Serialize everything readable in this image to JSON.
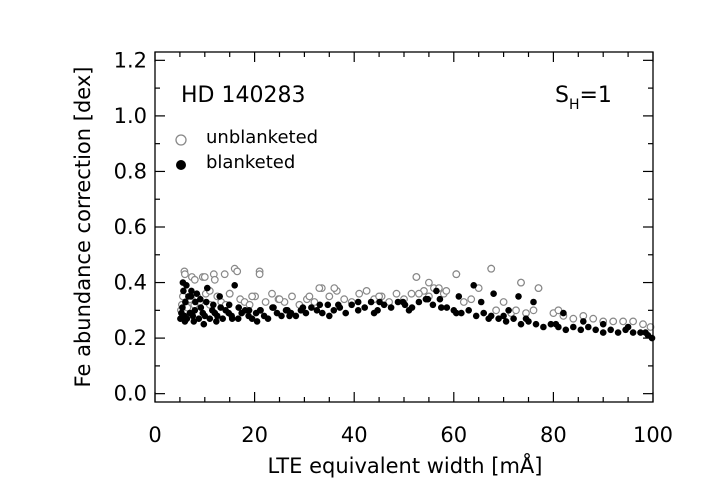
{
  "chart_data": {
    "type": "scatter",
    "object_label": "HD 140283",
    "sh_label": "S",
    "sh_subscript": "H",
    "sh_value": "=1",
    "xlabel": "LTE equivalent width [mÅ]",
    "ylabel": "Fe abundance correction [dex]",
    "xlim": [
      0,
      100
    ],
    "ylim": [
      -0.03,
      1.23
    ],
    "xticks": [
      0,
      20,
      40,
      60,
      80,
      100
    ],
    "xtick_labels": [
      "0",
      "20",
      "40",
      "60",
      "80",
      "100"
    ],
    "yticks": [
      0.0,
      0.2,
      0.4,
      0.6,
      0.8,
      1.0,
      1.2
    ],
    "ytick_labels": [
      "0.0",
      "0.2",
      "0.4",
      "0.6",
      "0.8",
      "1.0",
      "1.2"
    ],
    "legend": [
      {
        "name": "unblanketed",
        "marker": "open-circle"
      },
      {
        "name": "blanketed",
        "marker": "filled-circle"
      }
    ],
    "legend_position": "top-left",
    "grid": false,
    "series": [
      {
        "name": "unblanketed",
        "marker": "open-circle",
        "color": "#888888",
        "x": [
          5.2,
          5.4,
          5.6,
          5.9,
          6.2,
          6.5,
          7.0,
          7.4,
          7.9,
          8.5,
          9.0,
          9.6,
          10.2,
          11.0,
          11.8,
          12.5,
          13.3,
          14.2,
          15.0,
          16.0,
          17.1,
          18.0,
          19.0,
          20.1,
          21.0,
          22.2,
          23.5,
          24.8,
          26.0,
          27.5,
          29.0,
          30.5,
          32.0,
          33.5,
          35.0,
          36.5,
          38.0,
          39.5,
          41.0,
          42.5,
          44.0,
          45.5,
          47.0,
          48.5,
          50.0,
          51.5,
          52.5,
          54.0,
          55.0,
          56.0,
          57.0,
          58.0,
          60.5,
          62.0,
          63.5,
          65.0,
          67.5,
          68.5,
          70.0,
          71.5,
          72.5,
          73.5,
          74.5,
          76.0,
          77.0,
          80.0,
          81.0,
          82.0,
          84.0,
          86.0,
          88.0,
          90.0,
          92.0,
          94.0,
          96.0,
          98.0,
          99.5,
          6.0,
          8.0,
          10.0,
          12.0,
          14.0,
          16.5,
          21.0,
          33.0,
          36.0,
          52.5,
          55.0,
          60.5,
          67.5,
          73.5,
          77.0,
          11.0,
          15.0,
          19.5,
          25.0,
          31.0,
          45.0,
          53.0,
          58.5
        ],
        "y": [
          0.3,
          0.32,
          0.35,
          0.44,
          0.33,
          0.31,
          0.34,
          0.42,
          0.32,
          0.35,
          0.33,
          0.42,
          0.36,
          0.32,
          0.43,
          0.35,
          0.33,
          0.32,
          0.36,
          0.45,
          0.34,
          0.33,
          0.32,
          0.35,
          0.44,
          0.33,
          0.36,
          0.34,
          0.33,
          0.35,
          0.32,
          0.34,
          0.33,
          0.38,
          0.35,
          0.37,
          0.34,
          0.33,
          0.36,
          0.37,
          0.34,
          0.35,
          0.33,
          0.36,
          0.34,
          0.36,
          0.42,
          0.37,
          0.35,
          0.38,
          0.38,
          0.36,
          0.43,
          0.33,
          0.34,
          0.38,
          0.45,
          0.3,
          0.33,
          0.29,
          0.3,
          0.4,
          0.29,
          0.3,
          0.38,
          0.29,
          0.3,
          0.28,
          0.27,
          0.28,
          0.27,
          0.26,
          0.26,
          0.26,
          0.26,
          0.25,
          0.24,
          0.43,
          0.41,
          0.42,
          0.41,
          0.43,
          0.44,
          0.43,
          0.38,
          0.38,
          0.42,
          0.4,
          0.43,
          0.45,
          0.4,
          0.38,
          0.37,
          0.36,
          0.35,
          0.34,
          0.35,
          0.35,
          0.36,
          0.37
        ]
      },
      {
        "name": "blanketed",
        "marker": "filled-circle",
        "color": "#000000",
        "x": [
          5.1,
          5.3,
          5.5,
          5.7,
          5.9,
          6.1,
          6.4,
          6.7,
          7.0,
          7.3,
          7.6,
          8.0,
          8.4,
          8.8,
          9.2,
          9.6,
          10.0,
          10.5,
          11.0,
          11.5,
          12.0,
          12.5,
          13.0,
          13.6,
          14.2,
          14.8,
          15.4,
          16.0,
          16.7,
          17.4,
          18.1,
          18.8,
          19.5,
          20.3,
          21.1,
          21.9,
          22.7,
          23.6,
          24.5,
          25.4,
          26.3,
          27.3,
          28.3,
          29.3,
          30.3,
          31.4,
          32.5,
          33.6,
          34.7,
          35.9,
          37.1,
          38.3,
          39.5,
          40.8,
          42.1,
          43.4,
          44.7,
          46.0,
          47.4,
          48.8,
          50.2,
          51.6,
          53.0,
          54.4,
          55.8,
          57.2,
          58.6,
          60.0,
          61.5,
          63.0,
          64.5,
          66.0,
          67.5,
          69.0,
          70.5,
          72.0,
          73.5,
          75.0,
          76.5,
          78.0,
          79.5,
          81.0,
          82.5,
          84.0,
          85.5,
          87.0,
          88.5,
          90.0,
          91.5,
          93.0,
          94.5,
          96.0,
          97.5,
          99.0,
          99.8,
          5.6,
          6.3,
          7.2,
          8.1,
          9.1,
          10.3,
          11.7,
          13.2,
          14.9,
          16.8,
          18.9,
          21.2,
          23.8,
          26.6,
          29.7,
          33.1,
          36.8,
          40.8,
          45.1,
          49.8,
          54.8,
          56.5,
          61.0,
          65.5,
          68.0,
          70.0,
          73.0,
          76.0,
          82.0,
          86.0,
          90.0,
          95.0,
          98.5,
          6.0,
          7.8,
          9.8,
          12.3,
          15.5,
          20.5,
          27.0,
          35.0,
          44.0,
          51.0,
          57.5,
          60.5,
          64.0,
          67.0,
          71.0,
          74.5,
          80.5
        ],
        "y": [
          0.27,
          0.29,
          0.31,
          0.37,
          0.28,
          0.33,
          0.27,
          0.35,
          0.29,
          0.37,
          0.28,
          0.3,
          0.36,
          0.27,
          0.31,
          0.29,
          0.28,
          0.38,
          0.27,
          0.3,
          0.29,
          0.28,
          0.35,
          0.27,
          0.3,
          0.29,
          0.28,
          0.39,
          0.27,
          0.29,
          0.3,
          0.28,
          0.27,
          0.29,
          0.3,
          0.28,
          0.27,
          0.31,
          0.29,
          0.28,
          0.3,
          0.29,
          0.28,
          0.3,
          0.29,
          0.31,
          0.3,
          0.29,
          0.32,
          0.3,
          0.31,
          0.29,
          0.32,
          0.3,
          0.31,
          0.33,
          0.3,
          0.32,
          0.31,
          0.33,
          0.32,
          0.31,
          0.33,
          0.34,
          0.32,
          0.34,
          0.31,
          0.3,
          0.29,
          0.3,
          0.28,
          0.29,
          0.28,
          0.27,
          0.26,
          0.27,
          0.25,
          0.26,
          0.25,
          0.24,
          0.25,
          0.24,
          0.23,
          0.24,
          0.23,
          0.24,
          0.23,
          0.22,
          0.23,
          0.22,
          0.23,
          0.22,
          0.22,
          0.21,
          0.2,
          0.4,
          0.39,
          0.35,
          0.33,
          0.34,
          0.33,
          0.32,
          0.31,
          0.32,
          0.31,
          0.3,
          0.3,
          0.31,
          0.3,
          0.31,
          0.32,
          0.32,
          0.33,
          0.33,
          0.33,
          0.34,
          0.37,
          0.35,
          0.33,
          0.36,
          0.28,
          0.35,
          0.33,
          0.29,
          0.26,
          0.25,
          0.24,
          0.22,
          0.26,
          0.26,
          0.25,
          0.26,
          0.27,
          0.26,
          0.28,
          0.28,
          0.29,
          0.3,
          0.31,
          0.29,
          0.39,
          0.27,
          0.3,
          0.27,
          0.25
        ]
      }
    ]
  }
}
